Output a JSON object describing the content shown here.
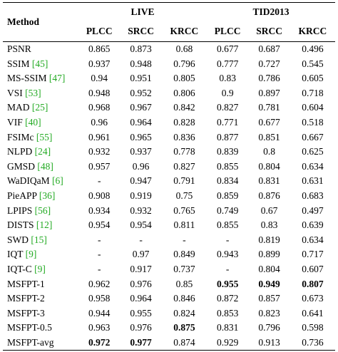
{
  "table": {
    "method_header": "Method",
    "groups": [
      {
        "name": "LIVE",
        "cols": [
          "PLCC",
          "SRCC",
          "KRCC"
        ]
      },
      {
        "name": "TID2013",
        "cols": [
          "PLCC",
          "SRCC",
          "KRCC"
        ]
      }
    ],
    "rows": [
      {
        "name": "PSNR",
        "cite": "",
        "vals": [
          "0.865",
          "0.873",
          "0.68",
          "0.677",
          "0.687",
          "0.496"
        ],
        "bold": []
      },
      {
        "name": "SSIM ",
        "cite": "[45]",
        "vals": [
          "0.937",
          "0.948",
          "0.796",
          "0.777",
          "0.727",
          "0.545"
        ],
        "bold": []
      },
      {
        "name": "MS-SSIM ",
        "cite": "[47]",
        "vals": [
          "0.94",
          "0.951",
          "0.805",
          "0.83",
          "0.786",
          "0.605"
        ],
        "bold": []
      },
      {
        "name": "VSI ",
        "cite": "[53]",
        "vals": [
          "0.948",
          "0.952",
          "0.806",
          "0.9",
          "0.897",
          "0.718"
        ],
        "bold": []
      },
      {
        "name": "MAD ",
        "cite": "[25]",
        "vals": [
          "0.968",
          "0.967",
          "0.842",
          "0.827",
          "0.781",
          "0.604"
        ],
        "bold": []
      },
      {
        "name": "VIF ",
        "cite": "[40]",
        "vals": [
          "0.96",
          "0.964",
          "0.828",
          "0.771",
          "0.677",
          "0.518"
        ],
        "bold": []
      },
      {
        "name": "FSIMc ",
        "cite": "[55]",
        "vals": [
          "0.961",
          "0.965",
          "0.836",
          "0.877",
          "0.851",
          "0.667"
        ],
        "bold": []
      },
      {
        "name": "NLPD ",
        "cite": "[24]",
        "vals": [
          "0.932",
          "0.937",
          "0.778",
          "0.839",
          "0.8",
          "0.625"
        ],
        "bold": []
      },
      {
        "name": "GMSD ",
        "cite": "[48]",
        "vals": [
          "0.957",
          "0.96",
          "0.827",
          "0.855",
          "0.804",
          "0.634"
        ],
        "bold": []
      },
      {
        "name": "WaDIQaM ",
        "cite": "[6]",
        "vals": [
          "-",
          "0.947",
          "0.791",
          "0.834",
          "0.831",
          "0.631"
        ],
        "bold": []
      },
      {
        "name": "PieAPP ",
        "cite": "[36]",
        "vals": [
          "0.908",
          "0.919",
          "0.75",
          "0.859",
          "0.876",
          "0.683"
        ],
        "bold": []
      },
      {
        "name": "LPIPS ",
        "cite": "[56]",
        "vals": [
          "0.934",
          "0.932",
          "0.765",
          "0.749",
          "0.67",
          "0.497"
        ],
        "bold": []
      },
      {
        "name": "DISTS ",
        "cite": "[12]",
        "vals": [
          "0.954",
          "0.954",
          "0.811",
          "0.855",
          "0.83",
          "0.639"
        ],
        "bold": []
      },
      {
        "name": "SWD ",
        "cite": "[15]",
        "vals": [
          "-",
          "-",
          "-",
          "-",
          "0.819",
          "0.634"
        ],
        "bold": []
      },
      {
        "name": "IQT ",
        "cite": "[9]",
        "vals": [
          "-",
          "0.97",
          "0.849",
          "0.943",
          "0.899",
          "0.717"
        ],
        "bold": []
      },
      {
        "name": "IQT-C ",
        "cite": "[9]",
        "vals": [
          "-",
          "0.917",
          "0.737",
          "-",
          "0.804",
          "0.607"
        ],
        "bold": []
      },
      {
        "name": "MSFPT-1",
        "cite": "",
        "vals": [
          "0.962",
          "0.976",
          "0.85",
          "0.955",
          "0.949",
          "0.807"
        ],
        "bold": [
          3,
          4,
          5
        ]
      },
      {
        "name": "MSFPT-2",
        "cite": "",
        "vals": [
          "0.958",
          "0.964",
          "0.846",
          "0.872",
          "0.857",
          "0.673"
        ],
        "bold": []
      },
      {
        "name": "MSFPT-3",
        "cite": "",
        "vals": [
          "0.944",
          "0.955",
          "0.824",
          "0.853",
          "0.823",
          "0.641"
        ],
        "bold": []
      },
      {
        "name": "MSFPT-0.5",
        "cite": "",
        "vals": [
          "0.963",
          "0.976",
          "0.875",
          "0.831",
          "0.796",
          "0.598"
        ],
        "bold": [
          2
        ]
      },
      {
        "name": "MSFPT-avg",
        "cite": "",
        "vals": [
          "0.972",
          "0.977",
          "0.874",
          "0.929",
          "0.913",
          "0.736"
        ],
        "bold": [
          0,
          1
        ]
      }
    ]
  }
}
